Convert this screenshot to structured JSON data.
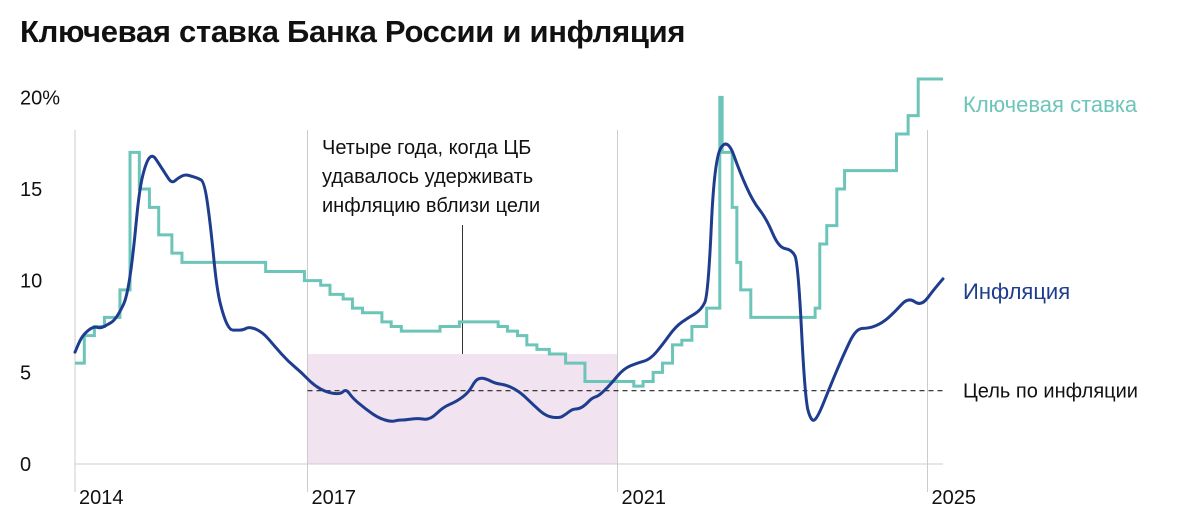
{
  "chart_data": {
    "type": "line",
    "title": "Ключевая ставка Банка России и инфляция",
    "xlabel": "",
    "ylabel": "",
    "xlim": [
      2014.0,
      2025.2
    ],
    "ylim": [
      0,
      20.4
    ],
    "ytick_labels": [
      "0",
      "5",
      "10",
      "15",
      "20%"
    ],
    "yticks": [
      0,
      5,
      10,
      15,
      20
    ],
    "xticks": [
      2014,
      2017,
      2021,
      2025
    ],
    "xtick_labels": [
      "2014",
      "2017",
      "2021",
      "2025"
    ],
    "grid": false,
    "colors": {
      "key_rate": "#6cc5b8",
      "inflation": "#1f3d8f",
      "band": "#f1e3f0",
      "target": "#222222",
      "axis": "#cccccc"
    },
    "series": [
      {
        "name": "Ключевая ставка",
        "style": "step",
        "x": [
          2014.0,
          2014.12,
          2014.25,
          2014.38,
          2014.5,
          2014.58,
          2014.71,
          2014.83,
          2014.96,
          2015.08,
          2015.12,
          2015.25,
          2015.38,
          2015.46,
          2015.58,
          2016.46,
          2016.96,
          2017.17,
          2017.29,
          2017.46,
          2017.58,
          2017.71,
          2017.96,
          2018.08,
          2018.21,
          2018.71,
          2018.96,
          2019.46,
          2019.58,
          2019.71,
          2019.83,
          2019.96,
          2020.12,
          2020.33,
          2020.58,
          2021.21,
          2021.33,
          2021.46,
          2021.58,
          2021.71,
          2021.83,
          2021.96,
          2022.15,
          2022.32,
          2022.35,
          2022.48,
          2022.54,
          2022.59,
          2022.72,
          2023.55,
          2023.61,
          2023.7,
          2023.83,
          2023.93,
          2024.33,
          2024.6,
          2024.75,
          2024.88,
          2025.2
        ],
        "values": [
          5.5,
          7.0,
          7.5,
          8.0,
          8.0,
          9.5,
          17.0,
          15.0,
          14.0,
          12.5,
          12.5,
          11.5,
          11.0,
          11.0,
          11.0,
          10.5,
          10.0,
          9.75,
          9.25,
          9.0,
          8.5,
          8.25,
          7.75,
          7.5,
          7.25,
          7.5,
          7.75,
          7.5,
          7.25,
          7.0,
          6.5,
          6.25,
          6.0,
          5.5,
          4.5,
          4.25,
          4.5,
          5.0,
          5.5,
          6.5,
          6.75,
          7.5,
          8.5,
          20.0,
          17.0,
          14.0,
          11.0,
          9.5,
          8.0,
          8.5,
          12.0,
          13.0,
          15.0,
          16.0,
          16.0,
          18.0,
          19.0,
          21.0,
          21.0
        ]
      },
      {
        "name": "Инфляция",
        "style": "line",
        "x": [
          2014.0,
          2014.08,
          2014.17,
          2014.25,
          2014.33,
          2014.42,
          2014.5,
          2014.58,
          2014.67,
          2014.75,
          2014.83,
          2014.92,
          2015.0,
          2015.08,
          2015.17,
          2015.25,
          2015.33,
          2015.42,
          2015.5,
          2015.58,
          2015.67,
          2015.75,
          2015.83,
          2015.92,
          2016.0,
          2016.08,
          2016.17,
          2016.25,
          2016.42,
          2016.58,
          2016.75,
          2016.92,
          2017.08,
          2017.25,
          2017.42,
          2017.5,
          2017.58,
          2017.75,
          2017.92,
          2018.08,
          2018.17,
          2018.25,
          2018.42,
          2018.58,
          2018.75,
          2018.92,
          2019.08,
          2019.17,
          2019.25,
          2019.33,
          2019.42,
          2019.58,
          2019.75,
          2019.92,
          2020.08,
          2020.25,
          2020.33,
          2020.42,
          2020.5,
          2020.58,
          2020.67,
          2020.75,
          2020.83,
          2020.92,
          2021.08,
          2021.25,
          2021.42,
          2021.58,
          2021.75,
          2021.92,
          2022.08,
          2022.17,
          2022.25,
          2022.42,
          2022.58,
          2022.75,
          2022.92,
          2023.08,
          2023.25,
          2023.33,
          2023.42,
          2023.5,
          2023.58,
          2023.75,
          2023.92,
          2024.08,
          2024.25,
          2024.42,
          2024.58,
          2024.75,
          2024.92,
          2025.08,
          2025.2
        ],
        "values": [
          6.1,
          6.9,
          7.3,
          7.5,
          7.4,
          7.6,
          7.8,
          8.3,
          9.1,
          11.4,
          15.0,
          16.5,
          16.9,
          16.4,
          15.8,
          15.3,
          15.6,
          15.8,
          15.7,
          15.6,
          15.4,
          13.0,
          9.5,
          8.0,
          7.3,
          7.3,
          7.3,
          7.5,
          7.2,
          6.4,
          5.6,
          5.0,
          4.3,
          3.9,
          3.8,
          4.1,
          3.6,
          3.0,
          2.5,
          2.3,
          2.4,
          2.4,
          2.5,
          2.4,
          3.1,
          3.4,
          3.9,
          4.6,
          4.7,
          4.6,
          4.4,
          4.3,
          3.9,
          3.2,
          2.6,
          2.5,
          2.7,
          3.0,
          3.0,
          3.2,
          3.6,
          3.7,
          4.0,
          4.4,
          5.2,
          5.5,
          5.7,
          6.5,
          7.5,
          8.0,
          8.4,
          9.2,
          16.7,
          17.8,
          15.9,
          14.3,
          13.4,
          11.8,
          11.7,
          11.0,
          3.5,
          2.3,
          2.5,
          4.3,
          6.0,
          7.4,
          7.4,
          7.7,
          8.3,
          9.1,
          8.6,
          9.5,
          10.1
        ]
      }
    ],
    "target_line": {
      "value": 4.0,
      "label": "Цель по инфляции"
    },
    "highlight": {
      "x_start": 2017.0,
      "x_end": 2021.0,
      "y_start": 0,
      "y_end": 6.0
    },
    "annotation": {
      "lines": [
        "Четыре года, когда ЦБ",
        "удавалось удерживать",
        "инфляцию вблизи цели"
      ],
      "x": 2019.0,
      "y": 6.0
    },
    "series_labels": {
      "key_rate": "Ключевая ставка",
      "inflation": "Инфляция"
    }
  }
}
